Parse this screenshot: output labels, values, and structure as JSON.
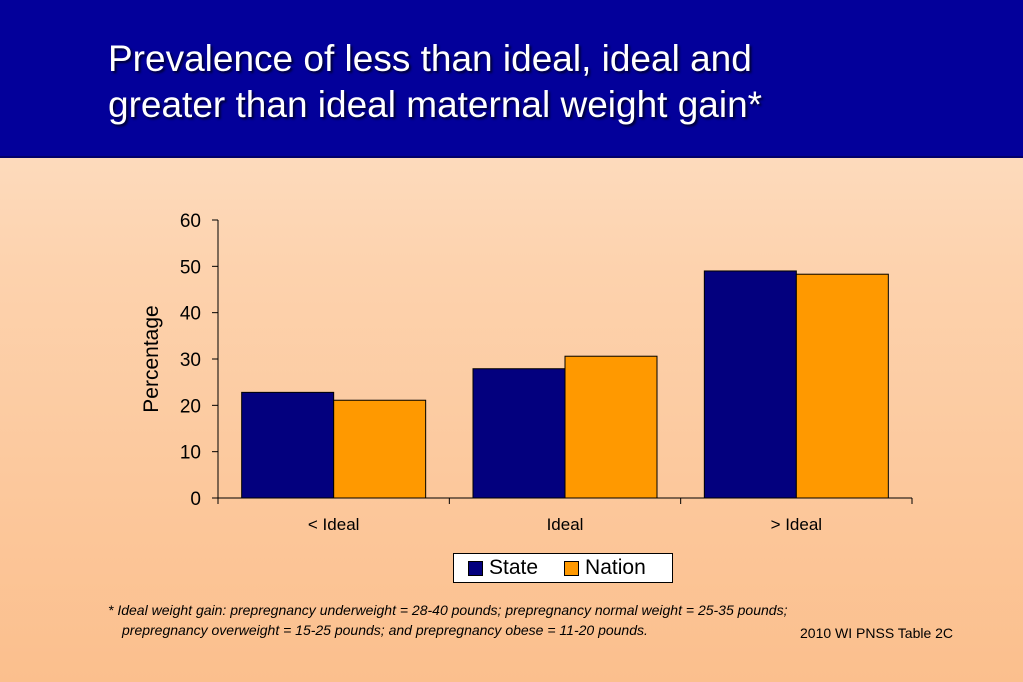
{
  "title": {
    "line1": "Prevalence of less than ideal, ideal and",
    "line2": "greater than ideal maternal weight gain*"
  },
  "colors": {
    "state": "#03007e",
    "nation": "#ff9900",
    "title_bg": "#03009a"
  },
  "chart_data": {
    "type": "bar",
    "categories": [
      "< Ideal",
      "Ideal",
      "> Ideal"
    ],
    "series": [
      {
        "name": "State",
        "values": [
          22.8,
          27.9,
          49.0
        ]
      },
      {
        "name": "Nation",
        "values": [
          21.1,
          30.6,
          48.3
        ]
      }
    ],
    "ylabel": "Percentage",
    "ylim": [
      0,
      60
    ],
    "yticks": [
      "0",
      "10",
      "20",
      "30",
      "40",
      "50",
      "60"
    ],
    "grid": false,
    "legend_position": "bottom"
  },
  "legend": {
    "state": "State",
    "nation": "Nation"
  },
  "footnote": {
    "line1": "*  Ideal weight gain: prepregnancy underweight = 28-40 pounds; prepregnancy normal weight = 25-35 pounds;",
    "line2": "prepregnancy overweight = 15-25 pounds; and prepregnancy obese = 11-20 pounds."
  },
  "source": "2010 WI PNSS Table 2C"
}
